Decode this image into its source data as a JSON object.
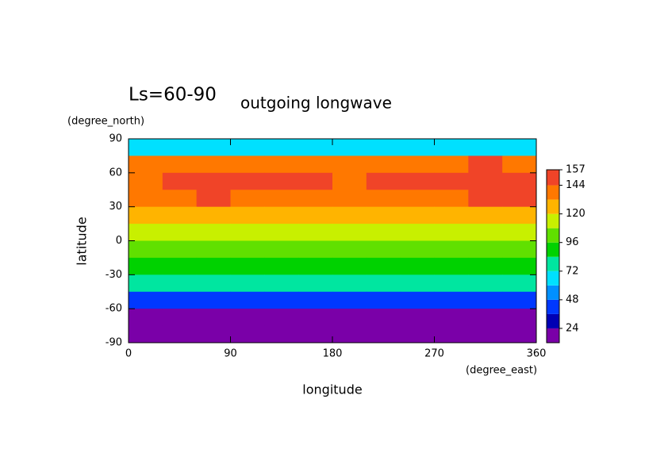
{
  "chart_data": {
    "type": "contour-map",
    "title": "Ls=60-90",
    "subtitle": "outgoing longwave",
    "x_label": "longitude",
    "y_label": "latitude",
    "x_unit": "(degree_east)",
    "y_unit": "(degree_north)",
    "xlim": [
      0,
      360
    ],
    "xticks": [
      0,
      90,
      180,
      270,
      360
    ],
    "ylim": [
      -90,
      90
    ],
    "yticks": [
      -90,
      -60,
      -30,
      0,
      30,
      60,
      90
    ],
    "lon": [
      15,
      45,
      75,
      105,
      135,
      165,
      195,
      225,
      255,
      285,
      315,
      345
    ],
    "lat": [
      82.5,
      67.5,
      52.5,
      37.5,
      22.5,
      7.5,
      -7.5,
      -22.5,
      -37.5,
      -52.5,
      -67.5,
      -82.5
    ],
    "field": [
      [
        60,
        60,
        60,
        60,
        60,
        60,
        60,
        60,
        60,
        60,
        60,
        60
      ],
      [
        138,
        140,
        140,
        141,
        140,
        138,
        137,
        138,
        140,
        141,
        145,
        143
      ],
      [
        142,
        145,
        146,
        146,
        146,
        145,
        143,
        144,
        145,
        146,
        152,
        148
      ],
      [
        133,
        135,
        146,
        140,
        138,
        134,
        132,
        133,
        136,
        140,
        146,
        145
      ],
      [
        124,
        126,
        130,
        124,
        122,
        122,
        121,
        120,
        122,
        124,
        126,
        125
      ],
      [
        112,
        115,
        114,
        110,
        112,
        111,
        111,
        112,
        113,
        114,
        113,
        112
      ],
      [
        104,
        106,
        105,
        103,
        104,
        105,
        104,
        105,
        104,
        103,
        104,
        104
      ],
      [
        93,
        95,
        95,
        94,
        93,
        93,
        94,
        94,
        93,
        92,
        92,
        93
      ],
      [
        76,
        78,
        79,
        77,
        76,
        76,
        75,
        76,
        75,
        74,
        75,
        76
      ],
      [
        38,
        38,
        38,
        38,
        38,
        38,
        38,
        38,
        38,
        38,
        38,
        38
      ],
      [
        15,
        15,
        15,
        15,
        15,
        15,
        15,
        15,
        15,
        15,
        15,
        15
      ],
      [
        15,
        15,
        15,
        15,
        15,
        15,
        15,
        15,
        15,
        15,
        15,
        15
      ]
    ],
    "levels": [
      12,
      24,
      36,
      48,
      60,
      72,
      84,
      96,
      108,
      120,
      132,
      144,
      157
    ],
    "colors": [
      "#7a00a8",
      "#0000b4",
      "#0038ff",
      "#0090ff",
      "#00e0ff",
      "#00e6a0",
      "#00d200",
      "#60e000",
      "#c8f000",
      "#ffb400",
      "#ff7800",
      "#f04428"
    ],
    "colorbar_ticks": [
      24,
      48,
      72,
      96,
      120,
      144,
      157
    ]
  }
}
